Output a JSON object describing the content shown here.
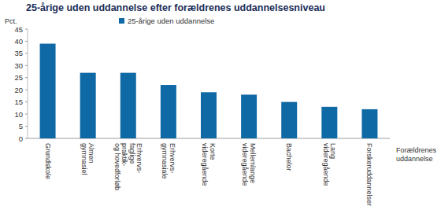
{
  "chart_data": {
    "type": "bar",
    "title": "25-årige uden uddannelse efter forældrenes uddannelsesniveau",
    "y_label": "Pct.",
    "x_label": "Forældrenes\nuddannelse",
    "categories": [
      "Grundskole",
      "Almen\ngymnasiel",
      "Erhvervs-\nfaglige\npraktik-\nog hovedforløb",
      "Erhvervs-\ngymnasiale",
      "Korte\nvideregående",
      "Mellemlange\nvideregående",
      "Bachelor",
      "Lang\nvideregående",
      "Forskeruddannelser"
    ],
    "series": [
      {
        "name": "25-årige uden uddannelse",
        "color": "#0f69a5",
        "values": [
          39,
          27,
          27,
          22,
          19,
          18,
          15,
          13,
          12
        ]
      }
    ],
    "ylim": [
      0,
      45
    ],
    "yticks": [
      0,
      5,
      10,
      15,
      20,
      25,
      30,
      35,
      40,
      45
    ],
    "grid": false,
    "legend": "top"
  }
}
